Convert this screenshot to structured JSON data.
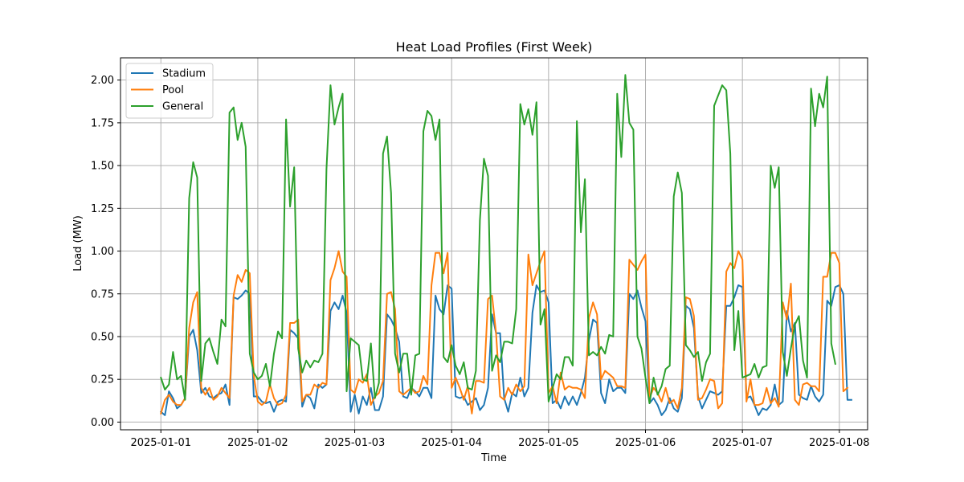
{
  "chart_data": {
    "type": "line",
    "title": "Heat Load Profiles (First Week)",
    "xlabel": "Time",
    "ylabel": "Load (MW)",
    "x_start": "2025-01-01T00:00",
    "x_step_hours": 1,
    "xlim": [
      "2024-12-31T14:00",
      "2025-01-08T07:00"
    ],
    "ylim": [
      -0.045,
      2.13
    ],
    "x_ticks": [
      {
        "value": "2025-01-01",
        "label": "2025-01-01"
      },
      {
        "value": "2025-01-02",
        "label": "2025-01-02"
      },
      {
        "value": "2025-01-03",
        "label": "2025-01-03"
      },
      {
        "value": "2025-01-04",
        "label": "2025-01-04"
      },
      {
        "value": "2025-01-05",
        "label": "2025-01-05"
      },
      {
        "value": "2025-01-06",
        "label": "2025-01-06"
      },
      {
        "value": "2025-01-07",
        "label": "2025-01-07"
      },
      {
        "value": "2025-01-08",
        "label": "2025-01-08"
      }
    ],
    "y_ticks": [
      {
        "value": 0.0,
        "label": "0.00"
      },
      {
        "value": 0.25,
        "label": "0.25"
      },
      {
        "value": 0.5,
        "label": "0.50"
      },
      {
        "value": 0.75,
        "label": "0.75"
      },
      {
        "value": 1.0,
        "label": "1.00"
      },
      {
        "value": 1.25,
        "label": "1.25"
      },
      {
        "value": 1.5,
        "label": "1.50"
      },
      {
        "value": 1.75,
        "label": "1.75"
      },
      {
        "value": 2.0,
        "label": "2.00"
      }
    ],
    "grid": true,
    "legend_position": "top-left",
    "series": [
      {
        "name": "Stadium",
        "color": "#1f77b4",
        "values": [
          0.06,
          0.04,
          0.18,
          0.14,
          0.08,
          0.1,
          0.14,
          0.5,
          0.54,
          0.42,
          0.17,
          0.2,
          0.15,
          0.14,
          0.16,
          0.17,
          0.22,
          0.1,
          0.73,
          0.72,
          0.74,
          0.77,
          0.75,
          0.15,
          0.15,
          0.12,
          0.11,
          0.12,
          0.06,
          0.12,
          0.13,
          0.12,
          0.54,
          0.52,
          0.49,
          0.09,
          0.16,
          0.14,
          0.08,
          0.22,
          0.2,
          0.22,
          0.65,
          0.7,
          0.66,
          0.74,
          0.64,
          0.06,
          0.16,
          0.05,
          0.15,
          0.1,
          0.2,
          0.07,
          0.07,
          0.15,
          0.63,
          0.6,
          0.55,
          0.47,
          0.15,
          0.14,
          0.2,
          0.18,
          0.15,
          0.2,
          0.2,
          0.14,
          0.74,
          0.66,
          0.63,
          0.8,
          0.78,
          0.15,
          0.14,
          0.15,
          0.1,
          0.12,
          0.14,
          0.07,
          0.1,
          0.2,
          0.63,
          0.52,
          0.52,
          0.14,
          0.06,
          0.17,
          0.15,
          0.26,
          0.15,
          0.2,
          0.64,
          0.8,
          0.76,
          0.77,
          0.7,
          0.11,
          0.13,
          0.08,
          0.15,
          0.1,
          0.15,
          0.1,
          0.17,
          0.26,
          0.48,
          0.6,
          0.58,
          0.17,
          0.11,
          0.25,
          0.18,
          0.2,
          0.2,
          0.17,
          0.75,
          0.72,
          0.77,
          0.67,
          0.59,
          0.11,
          0.14,
          0.1,
          0.04,
          0.07,
          0.14,
          0.08,
          0.06,
          0.14,
          0.68,
          0.66,
          0.55,
          0.15,
          0.08,
          0.13,
          0.18,
          0.17,
          0.16,
          0.18,
          0.68,
          0.68,
          0.73,
          0.8,
          0.79,
          0.14,
          0.15,
          0.1,
          0.04,
          0.08,
          0.07,
          0.1,
          0.22,
          0.1,
          0.12,
          0.65,
          0.53,
          0.58,
          0.16,
          0.14,
          0.13,
          0.21,
          0.15,
          0.12,
          0.16,
          0.71,
          0.68,
          0.79,
          0.8,
          0.75,
          0.13,
          0.13
        ]
      },
      {
        "name": "Pool",
        "color": "#ff7f0e",
        "values": [
          0.05,
          0.13,
          0.16,
          0.12,
          0.1,
          0.1,
          0.14,
          0.55,
          0.7,
          0.76,
          0.2,
          0.16,
          0.2,
          0.13,
          0.15,
          0.2,
          0.17,
          0.14,
          0.74,
          0.86,
          0.82,
          0.89,
          0.87,
          0.27,
          0.12,
          0.1,
          0.12,
          0.22,
          0.14,
          0.1,
          0.11,
          0.16,
          0.58,
          0.58,
          0.6,
          0.12,
          0.16,
          0.16,
          0.22,
          0.2,
          0.23,
          0.22,
          0.83,
          0.9,
          1.0,
          0.88,
          0.85,
          0.19,
          0.17,
          0.25,
          0.23,
          0.28,
          0.1,
          0.15,
          0.17,
          0.24,
          0.75,
          0.76,
          0.66,
          0.18,
          0.16,
          0.18,
          0.2,
          0.17,
          0.18,
          0.27,
          0.22,
          0.8,
          0.99,
          0.99,
          0.87,
          0.99,
          0.2,
          0.26,
          0.2,
          0.13,
          0.21,
          0.05,
          0.24,
          0.24,
          0.23,
          0.72,
          0.74,
          0.52,
          0.15,
          0.13,
          0.2,
          0.16,
          0.22,
          0.18,
          0.21,
          0.98,
          0.8,
          0.87,
          0.94,
          1.0,
          0.17,
          0.21,
          0.11,
          0.29,
          0.19,
          0.21,
          0.2,
          0.2,
          0.19,
          0.14,
          0.61,
          0.7,
          0.63,
          0.25,
          0.3,
          0.28,
          0.26,
          0.21,
          0.21,
          0.2,
          0.95,
          0.92,
          0.89,
          0.94,
          0.98,
          0.14,
          0.2,
          0.17,
          0.12,
          0.2,
          0.11,
          0.13,
          0.08,
          0.2,
          0.73,
          0.72,
          0.62,
          0.13,
          0.14,
          0.19,
          0.25,
          0.24,
          0.08,
          0.11,
          0.88,
          0.93,
          0.9,
          1.0,
          0.95,
          0.12,
          0.25,
          0.1,
          0.1,
          0.11,
          0.2,
          0.11,
          0.14,
          0.09,
          0.7,
          0.6,
          0.81,
          0.13,
          0.1,
          0.22,
          0.23,
          0.21,
          0.21,
          0.18,
          0.85,
          0.85,
          0.99,
          0.99,
          0.93,
          0.18,
          0.2
        ]
      },
      {
        "name": "General",
        "color": "#2ca02c",
        "values": [
          0.26,
          0.19,
          0.22,
          0.41,
          0.25,
          0.27,
          0.13,
          1.31,
          1.52,
          1.43,
          0.24,
          0.46,
          0.49,
          0.41,
          0.34,
          0.6,
          0.56,
          1.81,
          1.84,
          1.65,
          1.75,
          1.61,
          0.4,
          0.29,
          0.25,
          0.27,
          0.34,
          0.21,
          0.4,
          0.53,
          0.49,
          1.77,
          1.26,
          1.49,
          0.43,
          0.29,
          0.36,
          0.32,
          0.36,
          0.35,
          0.4,
          1.48,
          1.97,
          1.74,
          1.84,
          1.92,
          0.18,
          0.49,
          0.47,
          0.45,
          0.25,
          0.24,
          0.46,
          0.14,
          0.23,
          1.57,
          1.67,
          1.34,
          0.4,
          0.29,
          0.4,
          0.4,
          0.16,
          0.39,
          0.4,
          1.7,
          1.82,
          1.79,
          1.65,
          1.77,
          0.38,
          0.35,
          0.45,
          0.33,
          0.28,
          0.35,
          0.2,
          0.19,
          0.3,
          1.18,
          1.54,
          1.44,
          0.3,
          0.39,
          0.35,
          0.47,
          0.47,
          0.46,
          0.66,
          1.86,
          1.74,
          1.83,
          1.68,
          1.87,
          0.57,
          0.66,
          0.12,
          0.2,
          0.28,
          0.25,
          0.38,
          0.38,
          0.33,
          1.76,
          1.11,
          1.42,
          0.39,
          0.41,
          0.39,
          0.44,
          0.4,
          0.51,
          0.5,
          1.92,
          1.55,
          2.03,
          1.75,
          1.71,
          0.5,
          0.43,
          0.26,
          0.11,
          0.26,
          0.16,
          0.21,
          0.31,
          0.33,
          1.32,
          1.46,
          1.34,
          0.45,
          0.42,
          0.38,
          0.41,
          0.24,
          0.35,
          0.4,
          1.85,
          1.91,
          1.97,
          1.94,
          1.57,
          0.42,
          0.65,
          0.26,
          0.27,
          0.28,
          0.34,
          0.26,
          0.32,
          0.33,
          1.5,
          1.37,
          1.49,
          0.41,
          0.27,
          0.43,
          0.57,
          0.62,
          0.36,
          0.26,
          1.95,
          1.73,
          1.92,
          1.84,
          2.02,
          0.46,
          0.34
        ]
      }
    ]
  }
}
